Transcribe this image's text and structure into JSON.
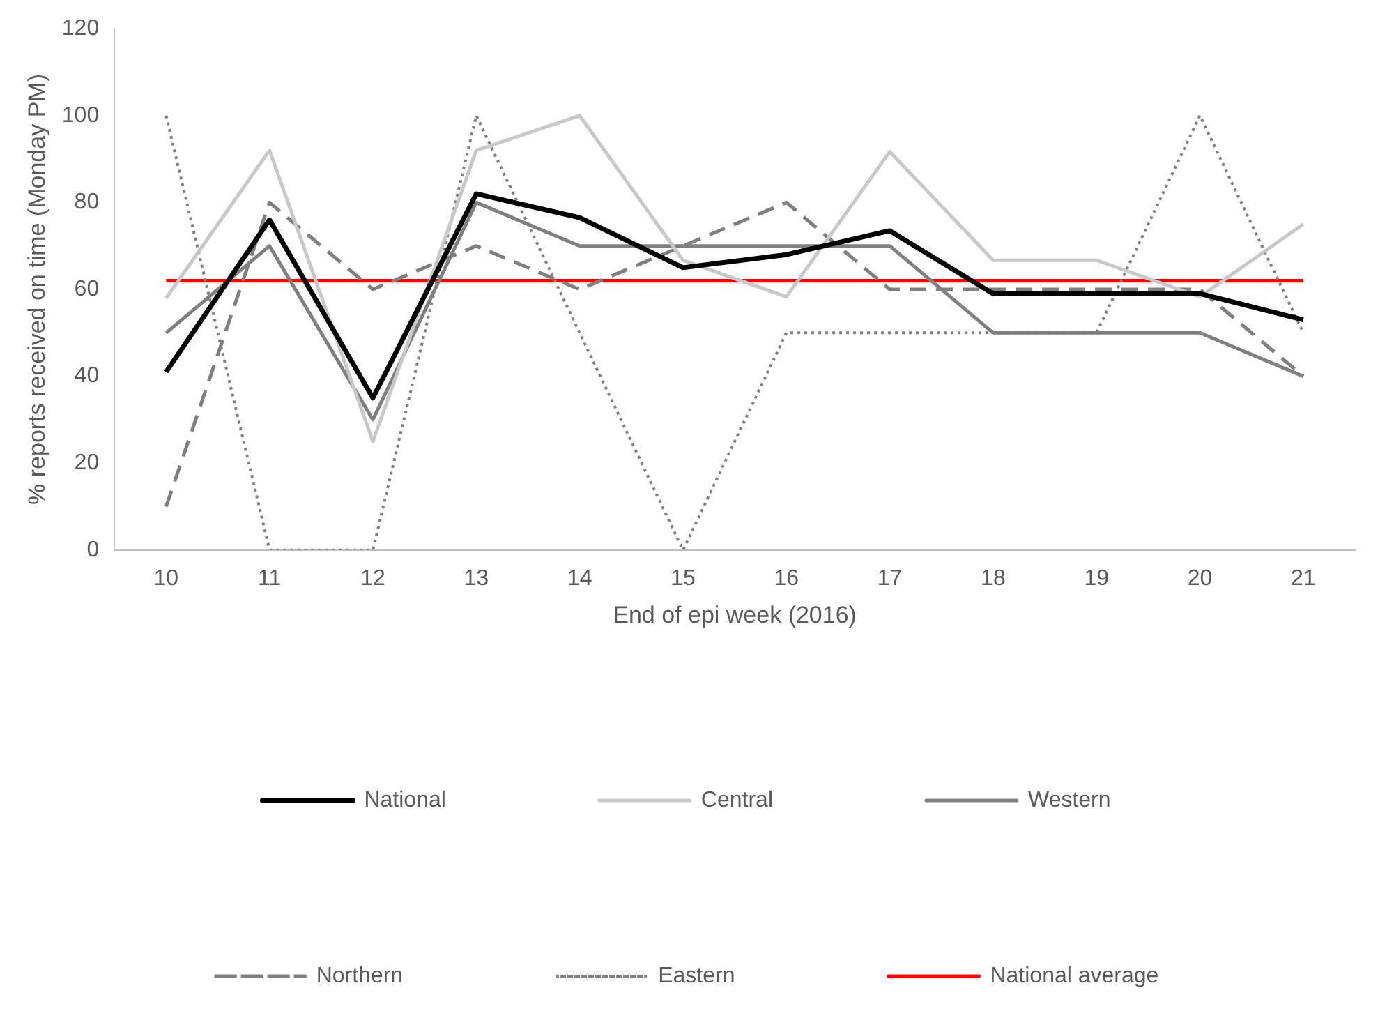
{
  "chart_data": {
    "type": "line",
    "xlabel": "End of epi week (2016)",
    "ylabel": "% reports received on time (Monday PM)",
    "categories": [
      "10",
      "11",
      "12",
      "13",
      "14",
      "15",
      "16",
      "17",
      "18",
      "19",
      "20",
      "21"
    ],
    "ylim": [
      0,
      120
    ],
    "yticks": [
      0,
      20,
      40,
      60,
      80,
      100,
      120
    ],
    "grid": false,
    "legend": "bottom",
    "marker": "none",
    "series": [
      {
        "name": "National",
        "color": "#000000",
        "values": [
          41,
          76,
          35,
          82,
          76.5,
          65,
          68,
          73.5,
          59,
          59,
          59,
          53
        ],
        "line_style": "solid"
      },
      {
        "name": "Central",
        "color": "#c8c8c8",
        "values": [
          58,
          92,
          25,
          92,
          100,
          66.7,
          58.3,
          91.7,
          66.7,
          66.7,
          58.3,
          75
        ],
        "line_style": "solid"
      },
      {
        "name": "Western",
        "color": "#7f7f7f",
        "values": [
          50,
          70,
          30,
          80,
          70,
          70,
          70,
          70,
          50,
          50,
          50,
          40
        ],
        "line_style": "solid"
      },
      {
        "name": "Northern",
        "color": "#7f7f7f",
        "values": [
          10,
          80,
          60,
          70,
          60,
          70,
          80,
          60,
          60,
          60,
          60,
          40
        ],
        "line_style": "dashed"
      },
      {
        "name": "Eastern",
        "color": "#7f7f7f",
        "values": [
          100,
          0,
          0,
          100,
          50,
          0,
          50,
          50,
          50,
          50,
          100,
          50
        ],
        "line_style": "dotted"
      },
      {
        "name": "National average",
        "color": "#ff0000",
        "values": [
          62,
          62,
          62,
          62,
          62,
          62,
          62,
          62,
          62,
          62,
          62,
          62
        ],
        "line_style": "solid"
      }
    ]
  }
}
